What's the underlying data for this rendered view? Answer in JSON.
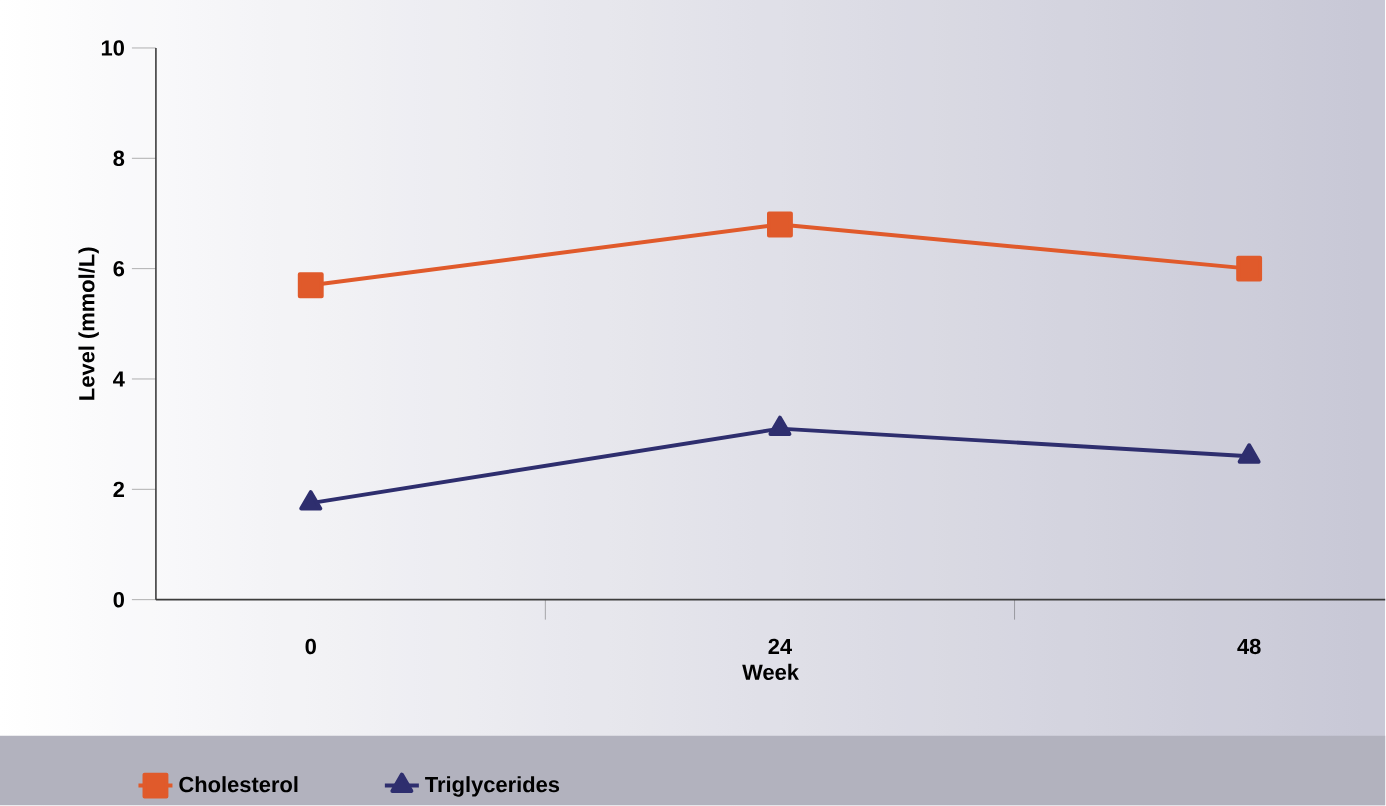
{
  "chart_data": {
    "type": "line",
    "xlabel": "Week",
    "ylabel": "Level (mmol/L)",
    "categories": [
      "0",
      "24",
      "48"
    ],
    "series": [
      {
        "name": "Cholesterol",
        "color": "#e05a2b",
        "marker": "square",
        "values": [
          5.7,
          6.8,
          6.0
        ]
      },
      {
        "name": "Triglycerides",
        "color": "#2e2e6e",
        "marker": "triangle",
        "values": [
          1.75,
          3.1,
          2.6
        ]
      }
    ],
    "ylim": [
      0,
      10
    ],
    "yticks": [
      0,
      2,
      4,
      6,
      8,
      10
    ],
    "grid": false,
    "legend": "bottom",
    "line_style": "solid"
  }
}
